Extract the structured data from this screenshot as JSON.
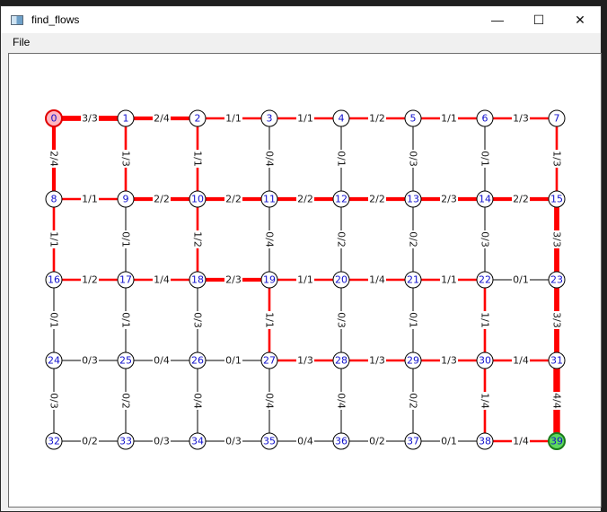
{
  "window": {
    "title": "find_flows"
  },
  "menu": {
    "items": [
      "File"
    ]
  },
  "controls": {
    "minimize": "—",
    "maximize": "☐",
    "close": "✕"
  },
  "colors": {
    "flow_edge": "#ff0000",
    "idle_edge": "#000000",
    "source_fill": "#ffb6c1",
    "source_border": "#e00000",
    "sink_fill": "#5ed85e",
    "sink_border": "#1a7a1a",
    "node_text": "#1010cc"
  },
  "graph": {
    "source": 0,
    "sink": 39,
    "nodes": [
      0,
      1,
      2,
      3,
      4,
      5,
      6,
      7,
      8,
      9,
      10,
      11,
      12,
      13,
      14,
      15,
      16,
      17,
      18,
      19,
      20,
      21,
      22,
      23,
      24,
      25,
      26,
      27,
      28,
      29,
      30,
      31,
      32,
      33,
      34,
      35,
      36,
      37,
      38,
      39
    ],
    "edges": [
      {
        "from": 0,
        "to": 1,
        "label": "3/3",
        "flow": 3
      },
      {
        "from": 1,
        "to": 2,
        "label": "2/4",
        "flow": 2
      },
      {
        "from": 2,
        "to": 3,
        "label": "1/1",
        "flow": 1
      },
      {
        "from": 3,
        "to": 4,
        "label": "1/1",
        "flow": 1
      },
      {
        "from": 4,
        "to": 5,
        "label": "1/2",
        "flow": 1
      },
      {
        "from": 5,
        "to": 6,
        "label": "1/1",
        "flow": 1
      },
      {
        "from": 6,
        "to": 7,
        "label": "1/3",
        "flow": 1
      },
      {
        "from": 8,
        "to": 9,
        "label": "1/1",
        "flow": 1
      },
      {
        "from": 9,
        "to": 10,
        "label": "2/2",
        "flow": 2
      },
      {
        "from": 10,
        "to": 11,
        "label": "2/2",
        "flow": 2
      },
      {
        "from": 11,
        "to": 12,
        "label": "2/2",
        "flow": 2
      },
      {
        "from": 12,
        "to": 13,
        "label": "2/2",
        "flow": 2
      },
      {
        "from": 13,
        "to": 14,
        "label": "2/3",
        "flow": 2
      },
      {
        "from": 14,
        "to": 15,
        "label": "2/2",
        "flow": 2
      },
      {
        "from": 16,
        "to": 17,
        "label": "1/2",
        "flow": 1
      },
      {
        "from": 17,
        "to": 18,
        "label": "1/4",
        "flow": 1
      },
      {
        "from": 18,
        "to": 19,
        "label": "2/3",
        "flow": 2
      },
      {
        "from": 19,
        "to": 20,
        "label": "1/1",
        "flow": 1
      },
      {
        "from": 20,
        "to": 21,
        "label": "1/4",
        "flow": 1
      },
      {
        "from": 21,
        "to": 22,
        "label": "1/1",
        "flow": 1
      },
      {
        "from": 22,
        "to": 23,
        "label": "0/1",
        "flow": 0
      },
      {
        "from": 24,
        "to": 25,
        "label": "0/3",
        "flow": 0
      },
      {
        "from": 25,
        "to": 26,
        "label": "0/4",
        "flow": 0
      },
      {
        "from": 26,
        "to": 27,
        "label": "0/1",
        "flow": 0
      },
      {
        "from": 27,
        "to": 28,
        "label": "1/3",
        "flow": 1
      },
      {
        "from": 28,
        "to": 29,
        "label": "1/3",
        "flow": 1
      },
      {
        "from": 29,
        "to": 30,
        "label": "1/3",
        "flow": 1
      },
      {
        "from": 30,
        "to": 31,
        "label": "1/4",
        "flow": 1
      },
      {
        "from": 32,
        "to": 33,
        "label": "0/2",
        "flow": 0
      },
      {
        "from": 33,
        "to": 34,
        "label": "0/3",
        "flow": 0
      },
      {
        "from": 34,
        "to": 35,
        "label": "0/3",
        "flow": 0
      },
      {
        "from": 35,
        "to": 36,
        "label": "0/4",
        "flow": 0
      },
      {
        "from": 36,
        "to": 37,
        "label": "0/2",
        "flow": 0
      },
      {
        "from": 37,
        "to": 38,
        "label": "0/1",
        "flow": 0
      },
      {
        "from": 38,
        "to": 39,
        "label": "1/4",
        "flow": 1
      },
      {
        "from": 0,
        "to": 8,
        "label": "2/4",
        "flow": 2
      },
      {
        "from": 1,
        "to": 9,
        "label": "1/3",
        "flow": 1
      },
      {
        "from": 2,
        "to": 10,
        "label": "1/1",
        "flow": 1
      },
      {
        "from": 3,
        "to": 11,
        "label": "0/4",
        "flow": 0
      },
      {
        "from": 4,
        "to": 12,
        "label": "0/1",
        "flow": 0
      },
      {
        "from": 5,
        "to": 13,
        "label": "0/3",
        "flow": 0
      },
      {
        "from": 6,
        "to": 14,
        "label": "0/1",
        "flow": 0
      },
      {
        "from": 7,
        "to": 15,
        "label": "1/3",
        "flow": 1
      },
      {
        "from": 8,
        "to": 16,
        "label": "1/1",
        "flow": 1
      },
      {
        "from": 9,
        "to": 17,
        "label": "0/1",
        "flow": 0
      },
      {
        "from": 10,
        "to": 18,
        "label": "1/2",
        "flow": 1
      },
      {
        "from": 11,
        "to": 19,
        "label": "0/4",
        "flow": 0
      },
      {
        "from": 12,
        "to": 20,
        "label": "0/2",
        "flow": 0
      },
      {
        "from": 13,
        "to": 21,
        "label": "0/2",
        "flow": 0
      },
      {
        "from": 14,
        "to": 22,
        "label": "0/3",
        "flow": 0
      },
      {
        "from": 15,
        "to": 23,
        "label": "3/3",
        "flow": 3
      },
      {
        "from": 16,
        "to": 24,
        "label": "0/1",
        "flow": 0
      },
      {
        "from": 17,
        "to": 25,
        "label": "0/1",
        "flow": 0
      },
      {
        "from": 18,
        "to": 26,
        "label": "0/3",
        "flow": 0
      },
      {
        "from": 19,
        "to": 27,
        "label": "1/1",
        "flow": 1
      },
      {
        "from": 20,
        "to": 28,
        "label": "0/3",
        "flow": 0
      },
      {
        "from": 21,
        "to": 29,
        "label": "0/1",
        "flow": 0
      },
      {
        "from": 22,
        "to": 30,
        "label": "1/1",
        "flow": 1
      },
      {
        "from": 23,
        "to": 31,
        "label": "3/3",
        "flow": 3
      },
      {
        "from": 24,
        "to": 32,
        "label": "0/3",
        "flow": 0
      },
      {
        "from": 25,
        "to": 33,
        "label": "0/2",
        "flow": 0
      },
      {
        "from": 26,
        "to": 34,
        "label": "0/4",
        "flow": 0
      },
      {
        "from": 27,
        "to": 35,
        "label": "0/4",
        "flow": 0
      },
      {
        "from": 28,
        "to": 36,
        "label": "0/4",
        "flow": 0
      },
      {
        "from": 29,
        "to": 37,
        "label": "0/2",
        "flow": 0
      },
      {
        "from": 30,
        "to": 38,
        "label": "1/4",
        "flow": 1
      },
      {
        "from": 31,
        "to": 39,
        "label": "4/4",
        "flow": 4
      }
    ]
  }
}
